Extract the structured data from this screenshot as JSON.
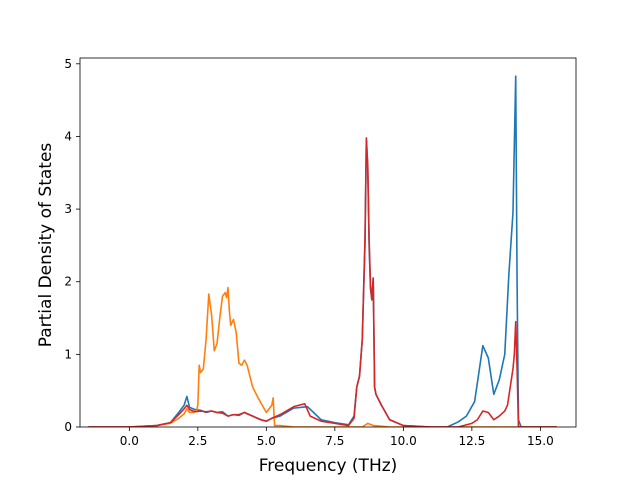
{
  "chart_data": {
    "type": "line",
    "title": "",
    "xlabel": "Frequency (THz)",
    "ylabel": "Partial Density of States",
    "xlim": [
      -1.8,
      16.3
    ],
    "ylim": [
      0,
      5.08
    ],
    "xticks": [
      0.0,
      2.5,
      5.0,
      7.5,
      10.0,
      12.5,
      15.0
    ],
    "xtick_labels": [
      "0.0",
      "2.5",
      "5.0",
      "7.5",
      "10.0",
      "12.5",
      "15.0"
    ],
    "yticks": [
      0,
      1,
      2,
      3,
      4,
      5
    ],
    "ytick_labels": [
      "0",
      "1",
      "2",
      "3",
      "4",
      "5"
    ],
    "grid": false,
    "legend": "none",
    "series": [
      {
        "color": "#1f77b4",
        "x": [
          -1.5,
          0.0,
          1.0,
          1.5,
          1.8,
          2.0,
          2.1,
          2.2,
          2.4,
          2.6,
          2.8,
          3.0,
          3.2,
          3.4,
          3.6,
          3.8,
          4.0,
          4.2,
          4.5,
          4.8,
          5.0,
          5.2,
          5.5,
          6.0,
          6.5,
          7.0,
          7.5,
          8.0,
          8.2,
          8.3,
          8.4,
          8.5,
          8.6,
          8.65,
          8.7,
          8.75,
          8.8,
          8.85,
          8.9,
          8.95,
          9.0,
          9.2,
          9.5,
          10.0,
          11.0,
          11.6,
          12.0,
          12.3,
          12.6,
          12.9,
          13.1,
          13.3,
          13.5,
          13.7,
          13.85,
          14.0,
          14.1,
          14.15,
          14.2,
          14.3,
          15.6
        ],
        "y": [
          0.0,
          0.0,
          0.02,
          0.06,
          0.2,
          0.3,
          0.42,
          0.27,
          0.24,
          0.23,
          0.2,
          0.22,
          0.2,
          0.21,
          0.15,
          0.17,
          0.16,
          0.2,
          0.15,
          0.1,
          0.08,
          0.12,
          0.15,
          0.26,
          0.28,
          0.1,
          0.06,
          0.03,
          0.15,
          0.55,
          0.7,
          1.2,
          2.5,
          3.95,
          3.6,
          2.5,
          1.9,
          1.75,
          2.05,
          0.55,
          0.45,
          0.3,
          0.1,
          0.02,
          0.0,
          0.0,
          0.07,
          0.15,
          0.35,
          1.12,
          0.95,
          0.45,
          0.65,
          1.0,
          2.1,
          2.95,
          4.83,
          2.0,
          0.1,
          0.0,
          0.0
        ]
      },
      {
        "color": "#ff7f0e",
        "x": [
          -1.5,
          0.0,
          1.0,
          1.5,
          1.8,
          2.0,
          2.1,
          2.2,
          2.35,
          2.45,
          2.5,
          2.55,
          2.6,
          2.7,
          2.8,
          2.9,
          3.0,
          3.1,
          3.2,
          3.3,
          3.4,
          3.5,
          3.55,
          3.6,
          3.65,
          3.7,
          3.8,
          3.9,
          4.0,
          4.1,
          4.2,
          4.3,
          4.4,
          4.5,
          4.7,
          5.0,
          5.2,
          5.25,
          5.3,
          5.5,
          6.0,
          7.0,
          8.0,
          8.5,
          8.7,
          8.9,
          9.5,
          10.0,
          15.6
        ],
        "y": [
          0.0,
          0.0,
          0.02,
          0.05,
          0.12,
          0.18,
          0.25,
          0.2,
          0.2,
          0.22,
          0.3,
          0.85,
          0.75,
          0.8,
          1.2,
          1.83,
          1.55,
          1.05,
          1.15,
          1.5,
          1.8,
          1.85,
          1.78,
          1.92,
          1.6,
          1.4,
          1.48,
          1.3,
          0.88,
          0.85,
          0.92,
          0.85,
          0.7,
          0.55,
          0.4,
          0.2,
          0.3,
          0.4,
          0.02,
          0.02,
          0.0,
          0.0,
          0.0,
          0.0,
          0.05,
          0.02,
          0.0,
          0.0,
          0.0
        ]
      },
      {
        "color": "#d62728",
        "x": [
          -1.5,
          0.0,
          1.0,
          1.5,
          1.8,
          2.0,
          2.1,
          2.2,
          2.4,
          2.6,
          2.8,
          3.0,
          3.2,
          3.4,
          3.6,
          3.8,
          4.0,
          4.2,
          4.5,
          4.8,
          5.0,
          5.2,
          5.5,
          6.0,
          6.4,
          6.6,
          7.0,
          7.5,
          8.0,
          8.2,
          8.3,
          8.4,
          8.5,
          8.6,
          8.65,
          8.7,
          8.75,
          8.8,
          8.85,
          8.9,
          8.95,
          9.0,
          9.2,
          9.5,
          10.0,
          11.0,
          12.0,
          12.5,
          12.7,
          12.9,
          13.1,
          13.3,
          13.5,
          13.7,
          13.8,
          14.0,
          14.05,
          14.1,
          14.15,
          14.2,
          15.6
        ],
        "y": [
          0.0,
          0.0,
          0.02,
          0.06,
          0.17,
          0.25,
          0.3,
          0.24,
          0.21,
          0.22,
          0.21,
          0.22,
          0.2,
          0.19,
          0.15,
          0.17,
          0.17,
          0.2,
          0.15,
          0.1,
          0.08,
          0.12,
          0.17,
          0.28,
          0.32,
          0.15,
          0.08,
          0.05,
          0.02,
          0.12,
          0.55,
          0.7,
          1.2,
          2.6,
          3.98,
          3.6,
          2.6,
          1.95,
          1.75,
          2.05,
          0.55,
          0.45,
          0.3,
          0.1,
          0.02,
          0.0,
          0.0,
          0.05,
          0.1,
          0.22,
          0.2,
          0.1,
          0.15,
          0.22,
          0.3,
          0.8,
          1.0,
          1.45,
          0.8,
          0.0,
          0.0
        ]
      }
    ]
  }
}
